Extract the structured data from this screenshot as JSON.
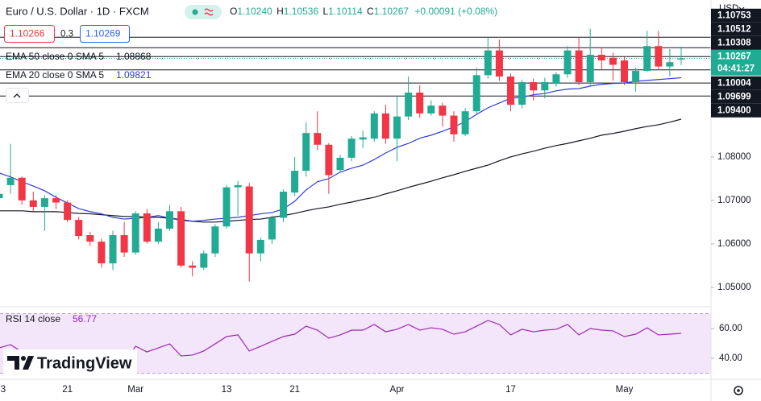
{
  "chart_data": [
    {
      "type": "candlestick",
      "title": "Euro / U.S. Dollar · 1D · FXCM",
      "ohlc": [
        {
          "key": "O",
          "value": "1.10240"
        },
        {
          "key": "H",
          "value": "1.10536"
        },
        {
          "key": "L",
          "value": "1.10114"
        },
        {
          "key": "C",
          "value": "1.10267"
        }
      ],
      "change": "+0.00091 (+0.08%)",
      "quote": {
        "bid": "1.10266",
        "spread": 0.3,
        "ask": "1.10269"
      },
      "currency": "USD",
      "categories": [
        "3",
        null,
        null,
        null,
        null,
        null,
        "21",
        null,
        null,
        null,
        null,
        null,
        "Mar",
        null,
        null,
        null,
        null,
        null,
        null,
        null,
        "13",
        null,
        null,
        null,
        null,
        null,
        "21",
        null,
        null,
        null,
        null,
        null,
        null,
        null,
        null,
        "Apr",
        null,
        null,
        null,
        null,
        null,
        null,
        null,
        null,
        null,
        "17",
        null,
        null,
        null,
        null,
        null,
        null,
        null,
        null,
        null,
        "May",
        null,
        null,
        null,
        null,
        null
      ],
      "open": [
        1.0705,
        1.0735,
        1.0752,
        1.07,
        1.0685,
        1.0705,
        1.0695,
        1.0655,
        1.062,
        1.0605,
        1.0555,
        1.062,
        1.058,
        1.067,
        1.0605,
        1.0635,
        1.0675,
        1.055,
        1.0545,
        1.0578,
        1.064,
        1.073,
        1.0732,
        1.0578,
        1.061,
        1.066,
        1.0718,
        1.0768,
        1.0855,
        1.0828,
        1.077,
        1.0798,
        1.084,
        1.0842,
        1.09,
        1.0842,
        1.0893,
        1.0948,
        1.09,
        1.0918,
        1.0895,
        1.0852,
        1.0905,
        1.0988,
        1.1045,
        1.0985,
        1.092,
        1.0972,
        1.0953,
        1.0968,
        1.099,
        1.1045,
        1.0972,
        1.1035,
        1.1028,
        1.1022,
        1.0972,
        1.0998,
        1.1055,
        1.1008,
        1.1024
      ],
      "high": [
        1.0722,
        1.083,
        1.0755,
        1.072,
        1.0712,
        1.0712,
        1.07,
        1.0662,
        1.0628,
        1.0612,
        1.063,
        1.065,
        1.0675,
        1.068,
        1.065,
        1.069,
        1.0685,
        1.056,
        1.0585,
        1.0645,
        1.0735,
        1.0745,
        1.074,
        1.0615,
        1.0665,
        1.0725,
        1.08,
        1.088,
        1.0905,
        1.0832,
        1.0805,
        1.0848,
        1.086,
        1.0905,
        1.092,
        1.094,
        1.0985,
        1.0965,
        1.093,
        1.0925,
        1.0905,
        1.0912,
        1.1005,
        1.1075,
        1.107,
        1.0992,
        1.0978,
        1.098,
        1.0982,
        1.0995,
        1.1055,
        1.1075,
        1.1095,
        1.105,
        1.104,
        1.103,
        1.1005,
        1.109,
        1.109,
        1.1048,
        1.10536
      ],
      "low": [
        1.0698,
        1.0715,
        1.069,
        1.0675,
        1.063,
        1.068,
        1.065,
        1.061,
        1.0595,
        1.0545,
        1.054,
        1.057,
        1.0575,
        1.06,
        1.06,
        1.063,
        1.0545,
        1.0525,
        1.054,
        1.057,
        1.0635,
        1.0665,
        1.0513,
        1.056,
        1.06,
        1.065,
        1.071,
        1.0755,
        1.0815,
        1.0715,
        1.0765,
        1.079,
        1.082,
        1.0835,
        1.083,
        1.079,
        1.0885,
        1.089,
        1.0895,
        1.087,
        1.0835,
        1.0848,
        1.09,
        1.098,
        1.0975,
        1.0905,
        1.0912,
        1.093,
        1.0935,
        1.0962,
        1.0982,
        1.0965,
        1.0965,
        1.1,
        1.0975,
        1.0965,
        1.095,
        1.0995,
        1.1,
        1.0985,
        1.10114
      ],
      "close": [
        1.0715,
        1.0752,
        1.07,
        1.0685,
        1.0705,
        1.0695,
        1.0655,
        1.0618,
        1.0605,
        1.0555,
        1.062,
        1.058,
        1.067,
        1.0605,
        1.0635,
        1.0675,
        1.055,
        1.0545,
        1.0578,
        1.064,
        1.073,
        1.0735,
        1.0578,
        1.0609,
        1.066,
        1.072,
        1.0768,
        1.0855,
        1.0828,
        1.0758,
        1.0798,
        1.0842,
        1.0845,
        1.09,
        1.0842,
        1.0893,
        1.0948,
        1.09,
        1.0918,
        1.0895,
        1.0852,
        1.0905,
        1.0988,
        1.1045,
        1.0985,
        1.092,
        1.0972,
        1.0953,
        1.0972,
        1.099,
        1.1045,
        1.0972,
        1.1035,
        1.1022,
        1.1012,
        1.0972,
        1.0998,
        1.1055,
        1.1008,
        1.1018,
        1.10267
      ],
      "up_color": "#22ab94",
      "down_color": "#f23645",
      "overlays": [
        {
          "name": "EMA 50 close 0 SMA 5",
          "color": "#131722",
          "last_label": "1.08868",
          "values": [
            1.0676,
            1.0676,
            1.0676,
            1.0674,
            1.0674,
            1.0674,
            1.0672,
            1.067,
            1.0669,
            1.0667,
            1.0665,
            1.0663,
            1.0663,
            1.0661,
            1.0661,
            1.0659,
            1.0656,
            1.0652,
            1.065,
            1.065,
            1.0652,
            1.0654,
            1.0656,
            1.0657,
            1.0661,
            1.0665,
            1.067,
            1.0676,
            1.0681,
            1.0685,
            1.0691,
            1.0696,
            1.0702,
            1.0707,
            1.0715,
            1.0722,
            1.073,
            1.0737,
            1.0744,
            1.0752,
            1.0759,
            1.0767,
            1.0774,
            1.0781,
            1.0791,
            1.08,
            1.0807,
            1.0813,
            1.082,
            1.0826,
            1.0831,
            1.0837,
            1.0843,
            1.085,
            1.0854,
            1.0859,
            1.0865,
            1.087,
            1.0874,
            1.088,
            1.08868
          ]
        },
        {
          "name": "EMA 20 close 0 SMA 5",
          "color": "#2f3bd6",
          "last_label": "1.09821",
          "values": [
            1.0763,
            1.0754,
            1.0743,
            1.0733,
            1.0722,
            1.0707,
            1.0694,
            1.0681,
            1.0674,
            1.0669,
            1.0661,
            1.0657,
            1.0659,
            1.0661,
            1.0665,
            1.0659,
            1.0654,
            1.0652,
            1.0654,
            1.0657,
            1.0659,
            1.0661,
            1.0665,
            1.0669,
            1.0672,
            1.068,
            1.0698,
            1.0724,
            1.0743,
            1.075,
            1.0765,
            1.0774,
            1.0781,
            1.0794,
            1.0809,
            1.0822,
            1.0831,
            1.0843,
            1.085,
            1.0859,
            1.0869,
            1.0881,
            1.0898,
            1.0913,
            1.0924,
            1.0935,
            1.0937,
            1.0943,
            1.0946,
            1.0952,
            1.0956,
            1.0957,
            1.0963,
            1.0967,
            1.0969,
            1.097,
            1.0974,
            1.0976,
            1.0978,
            1.098,
            1.09821
          ]
        }
      ],
      "ylim": [
        1.0457,
        1.1161
      ],
      "yticks": [
        {
          "value": 1.05,
          "label": "1.05000"
        },
        {
          "value": 1.06,
          "label": "1.06000"
        },
        {
          "value": 1.07,
          "label": "1.07000"
        },
        {
          "value": 1.08,
          "label": "1.08000"
        }
      ],
      "grid": false,
      "price_lines": [
        {
          "value": 1.10753,
          "label": "1.10753"
        },
        {
          "value": 1.10512,
          "label": "1.10512"
        },
        {
          "value": 1.10308,
          "label": "1.10308"
        },
        {
          "value": 1.10004,
          "label": "1.10004"
        },
        {
          "value": 1.09699,
          "label": "1.09699"
        },
        {
          "value": 1.094,
          "label": "1.09400"
        }
      ],
      "last_price": {
        "value": 1.10267,
        "label": "1.10267",
        "countdown": "04:41:27"
      },
      "watermark": "TradingView"
    },
    {
      "type": "line",
      "title": "RSI 14 close",
      "color": "#9c27b0",
      "last_label": "56.77",
      "values": [
        47.0,
        49.2,
        44.3,
        42.7,
        38.9,
        38.4,
        40.0,
        36.2,
        34.6,
        31.9,
        38.4,
        36.2,
        48.1,
        44.3,
        47.0,
        49.7,
        41.6,
        42.2,
        44.9,
        49.7,
        54.6,
        55.7,
        44.9,
        48.1,
        51.4,
        54.6,
        56.2,
        61.6,
        58.9,
        53.5,
        55.7,
        58.9,
        58.9,
        62.7,
        57.8,
        59.5,
        62.7,
        58.9,
        60.5,
        59.5,
        56.2,
        57.8,
        61.6,
        65.4,
        62.7,
        55.7,
        59.5,
        57.8,
        58.9,
        59.5,
        62.7,
        55.7,
        60.0,
        58.9,
        58.4,
        54.6,
        56.2,
        60.5,
        55.7,
        56.2,
        56.77
      ],
      "ylim": [
        26.5,
        73.5
      ],
      "yticks": [
        {
          "value": 60,
          "label": "60.00"
        },
        {
          "value": 40,
          "label": "40.00"
        }
      ],
      "bands": [
        30,
        70
      ],
      "band_color": "#f3e6fb"
    }
  ]
}
